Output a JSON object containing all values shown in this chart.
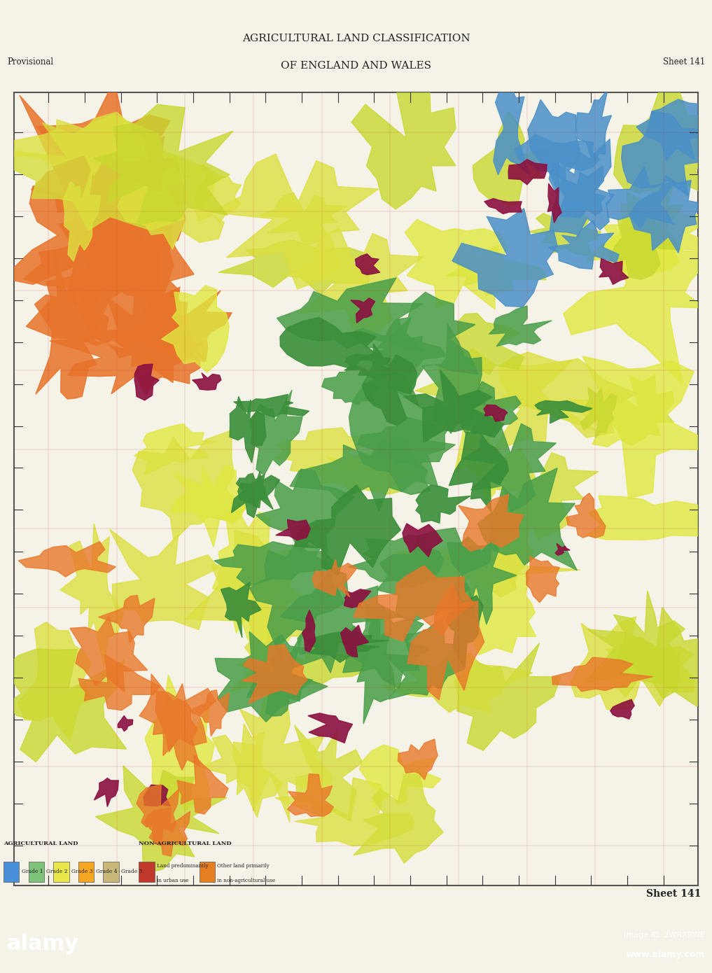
{
  "title_line1": "AGRICULTURAL LAND CLASSIFICATION",
  "title_line2": "OF ENGLAND AND WALES",
  "provisional_text": "Provisional",
  "sheet_text": "Sheet 141",
  "sheet_text2": "Sheet 141",
  "bg_color": "#f5f2e8",
  "map_bg": "#c8b87a",
  "legend_items_agri": [
    {
      "label": "Grade 1",
      "color": "#4a90d9"
    },
    {
      "label": "Grade 2",
      "color": "#7dc47a"
    },
    {
      "label": "Grade 3",
      "color": "#e8e84a"
    },
    {
      "label": "Grade 4",
      "color": "#f5a623"
    },
    {
      "label": "Grade 5",
      "color": "#c8b87a"
    }
  ],
  "legend_items_non_agri": [
    {
      "label": "Land predominantly\nin urban use",
      "color": "#c0392b"
    },
    {
      "label": "Other land primarily\nin non-agricultural use",
      "color": "#e67e22"
    }
  ],
  "agri_label": "AGRICULTURAL LAND",
  "non_agri_label": "NON-AGRICULTURAL LAND",
  "map_colors": {
    "yellow_green": "#d4e04a",
    "yellow": "#e8e84a",
    "orange": "#f5a623",
    "green": "#5cb85c",
    "tan": "#c8b87a",
    "blue": "#4a90d9",
    "red": "#c0392b",
    "dark_green": "#2d7a2d",
    "orange2": "#e67e22",
    "light_green": "#7dc47a",
    "purple": "#8b1a4a"
  },
  "alamy_bg": "#000000",
  "alamy_text": "alamy",
  "image_id_text": "Image ID: 2WRXRWE",
  "website_text": "www.alamy.com",
  "border_color": "#888888",
  "grid_color": "#cc0000",
  "dashed_color": "#cc0000"
}
